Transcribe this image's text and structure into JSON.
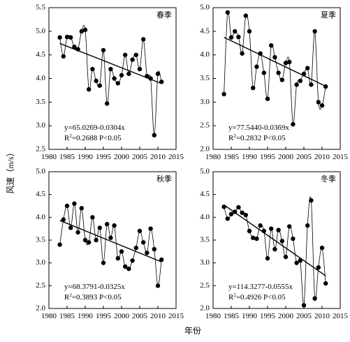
{
  "figure": {
    "ylabel": "风速（m/s）",
    "xlabel": "年份"
  },
  "chart_data": [
    {
      "type": "scatter",
      "title": "春季",
      "equation": "y=65.0269-0.0304x",
      "r2_label": "R",
      "r2_sup": "2",
      "r2_text": "=0.2688  P<0.05",
      "xlim": [
        1980,
        2015
      ],
      "ylim": [
        2.5,
        5.5
      ],
      "xticks": [
        1980,
        1985,
        1990,
        1995,
        2000,
        2005,
        2010,
        2015
      ],
      "yticks": [
        2.5,
        3.0,
        3.5,
        4.0,
        4.5,
        5.0,
        5.5
      ],
      "trend": {
        "intercept": 65.0269,
        "slope": -0.0304
      },
      "x": [
        1983,
        1984,
        1985,
        1986,
        1987,
        1988,
        1989,
        1990,
        1991,
        1992,
        1993,
        1994,
        1995,
        1996,
        1997,
        1998,
        1999,
        2000,
        2001,
        2002,
        2003,
        2004,
        2005,
        2006,
        2007,
        2008,
        2009,
        2010,
        2011
      ],
      "y": [
        4.87,
        4.47,
        4.88,
        4.87,
        4.67,
        4.62,
        5.0,
        5.03,
        3.77,
        4.2,
        3.95,
        3.85,
        4.6,
        3.47,
        4.2,
        4.0,
        3.9,
        4.07,
        4.5,
        4.1,
        4.4,
        4.5,
        4.2,
        4.83,
        4.05,
        4.0,
        2.8,
        4.1,
        3.93
      ]
    },
    {
      "type": "scatter",
      "title": "夏季",
      "equation": "y=77.5440-0.0369x",
      "r2_label": "R",
      "r2_sup": "2",
      "r2_text": "=0.2832  P<0.05",
      "xlim": [
        1980,
        2015
      ],
      "ylim": [
        2.0,
        5.0
      ],
      "xticks": [
        1980,
        1985,
        1990,
        1995,
        2000,
        2005,
        2010,
        2015
      ],
      "yticks": [
        2.0,
        2.5,
        3.0,
        3.5,
        4.0,
        4.5,
        5.0
      ],
      "trend": {
        "intercept": 77.544,
        "slope": -0.0369
      },
      "x": [
        1983,
        1984,
        1985,
        1986,
        1987,
        1988,
        1989,
        1990,
        1991,
        1992,
        1993,
        1994,
        1995,
        1996,
        1997,
        1998,
        1999,
        2000,
        2001,
        2002,
        2003,
        2004,
        2005,
        2006,
        2007,
        2008,
        2009,
        2010,
        2011
      ],
      "y": [
        3.17,
        4.9,
        4.37,
        4.5,
        4.38,
        4.03,
        4.83,
        4.5,
        3.3,
        3.75,
        4.03,
        3.62,
        3.07,
        4.2,
        3.95,
        3.62,
        3.47,
        3.83,
        3.85,
        2.53,
        3.37,
        3.45,
        3.6,
        3.72,
        3.37,
        4.5,
        3.0,
        2.93,
        3.33
      ]
    },
    {
      "type": "scatter",
      "title": "秋季",
      "equation": "y=68.3791-0.0325x",
      "r2_label": "R",
      "r2_sup": "2",
      "r2_text": "=0.3893  P<0.05",
      "xlim": [
        1980,
        2015
      ],
      "ylim": [
        2.0,
        5.0
      ],
      "xticks": [
        1980,
        1985,
        1990,
        1995,
        2000,
        2005,
        2010,
        2015
      ],
      "yticks": [
        2.0,
        2.5,
        3.0,
        3.5,
        4.0,
        4.5,
        5.0
      ],
      "trend": {
        "intercept": 68.3791,
        "slope": -0.0325
      },
      "x": [
        1983,
        1984,
        1985,
        1986,
        1987,
        1988,
        1989,
        1990,
        1991,
        1992,
        1993,
        1994,
        1995,
        1996,
        1997,
        1998,
        1999,
        2000,
        2001,
        2002,
        2003,
        2004,
        2005,
        2006,
        2007,
        2008,
        2009,
        2010,
        2011
      ],
      "y": [
        3.4,
        3.95,
        4.25,
        3.77,
        4.3,
        3.67,
        4.2,
        3.5,
        3.45,
        4.0,
        3.5,
        3.77,
        3.0,
        3.85,
        3.55,
        3.82,
        3.1,
        3.25,
        2.92,
        2.87,
        3.05,
        3.33,
        3.7,
        3.45,
        3.22,
        3.75,
        3.3,
        2.5,
        3.07
      ]
    },
    {
      "type": "scatter",
      "title": "冬季",
      "equation": "y=114.3277-0.0555x",
      "r2_label": "R",
      "r2_sup": "2",
      "r2_text": "=0.4926  P<0.05",
      "xlim": [
        1980,
        2015
      ],
      "ylim": [
        2.0,
        5.0
      ],
      "xticks": [
        1980,
        1985,
        1990,
        1995,
        2000,
        2005,
        2010,
        2015
      ],
      "yticks": [
        2.0,
        2.5,
        3.0,
        3.5,
        4.0,
        4.5,
        5.0
      ],
      "trend": {
        "intercept": 114.3277,
        "slope": -0.0555
      },
      "x": [
        1983,
        1984,
        1985,
        1986,
        1987,
        1988,
        1989,
        1990,
        1991,
        1992,
        1993,
        1994,
        1995,
        1996,
        1997,
        1998,
        1999,
        2000,
        2001,
        2002,
        2003,
        2004,
        2005,
        2006,
        2007,
        2008,
        2009,
        2010,
        2011
      ],
      "y": [
        4.23,
        3.97,
        4.07,
        4.12,
        4.22,
        4.1,
        4.05,
        3.7,
        3.55,
        3.53,
        3.82,
        3.7,
        3.1,
        3.75,
        3.3,
        3.72,
        3.48,
        3.13,
        3.8,
        3.53,
        3.0,
        3.05,
        2.07,
        3.82,
        4.37,
        2.22,
        2.9,
        3.33,
        2.55
      ]
    }
  ]
}
